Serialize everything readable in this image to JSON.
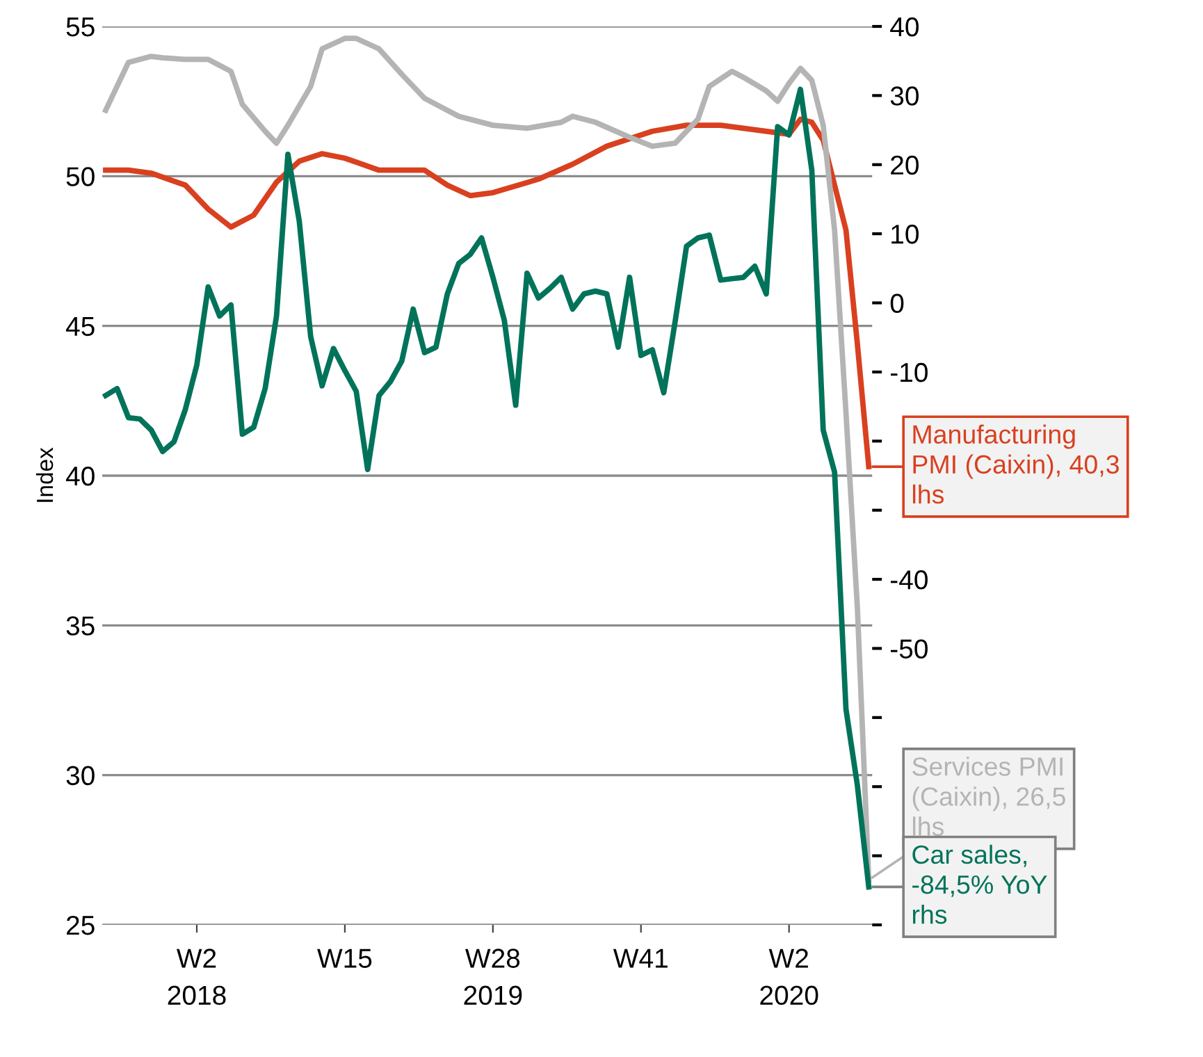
{
  "chart_data": {
    "type": "line",
    "ylabel": "Index",
    "categories": [
      null,
      null,
      null,
      null,
      null,
      null,
      null,
      null,
      "W2\n2018",
      null,
      null,
      null,
      null,
      null,
      null,
      null,
      null,
      null,
      null,
      null,
      null,
      "W15",
      null,
      null,
      null,
      null,
      null,
      null,
      null,
      null,
      null,
      null,
      null,
      null,
      "W28\n2019",
      null,
      null,
      null,
      null,
      null,
      null,
      null,
      null,
      null,
      null,
      null,
      null,
      "W41",
      null,
      null,
      null,
      null,
      null,
      null,
      null,
      null,
      null,
      null,
      null,
      null,
      "W2\n2020",
      null,
      null,
      null,
      null,
      null,
      null,
      null
    ],
    "ylim": [
      25,
      55
    ],
    "yticks": [
      25,
      30,
      35,
      40,
      45,
      50,
      55
    ],
    "y2lim": [
      -90,
      40
    ],
    "y2ticks": [
      40,
      30,
      20,
      10,
      0,
      -10,
      {
        "value": -20,
        "label": null
      },
      {
        "value": -30,
        "label": null
      },
      -40,
      -50,
      {
        "value": -60,
        "label": null
      },
      {
        "value": -70,
        "label": null
      },
      {
        "value": -80,
        "label": null
      },
      {
        "value": -90,
        "label": null
      }
    ],
    "grid": "y",
    "legend": "right",
    "marker": "none",
    "line_style": "solid",
    "series": [
      {
        "name": "Manufacturing\nPMI (Caixin), 40,3\nlhs",
        "color": "#d9401f",
        "values": [
          50.2,
          null,
          50.2,
          null,
          50.1,
          null,
          null,
          49.7,
          null,
          48.9,
          null,
          48.3,
          null,
          48.7,
          null,
          49.8,
          null,
          50.5,
          null,
          50.75,
          null,
          50.6,
          null,
          null,
          50.2,
          null,
          null,
          null,
          50.2,
          null,
          49.7,
          null,
          49.35,
          null,
          49.45,
          null,
          null,
          null,
          49.9,
          null,
          null,
          50.4,
          null,
          null,
          51.0,
          null,
          null,
          null,
          51.5,
          null,
          null,
          51.7,
          null,
          null,
          51.7,
          null,
          null,
          51.55,
          null,
          null,
          51.4,
          51.9,
          51.8,
          51.2,
          null,
          48.2,
          44.4,
          40.3
        ]
      },
      {
        "name": "Services PMI\n(Caixin), 26,5\nlhs",
        "color": "#b4b4b4",
        "values": [
          52.2,
          null,
          53.8,
          null,
          54.0,
          53.95,
          null,
          53.9,
          null,
          53.9,
          53.7,
          53.5,
          52.4,
          null,
          51.5,
          51.1,
          51.7,
          null,
          53.0,
          54.25,
          null,
          54.6,
          54.6,
          null,
          54.25,
          null,
          53.4,
          null,
          52.6,
          null,
          null,
          52.0,
          null,
          null,
          51.7,
          null,
          null,
          51.6,
          null,
          null,
          51.8,
          52.0,
          null,
          51.8,
          null,
          null,
          51.3,
          null,
          51.0,
          null,
          51.1,
          null,
          51.9,
          53.0,
          null,
          53.5,
          53.3,
          null,
          52.85,
          52.5,
          53.1,
          53.6,
          53.2,
          51.7,
          48.2,
          42.1,
          35.6,
          26.5
        ]
      },
      {
        "name": "Car sales,\n-84,5% YoY\nrhs",
        "color": "#00735a",
        "axis": "y2",
        "values": [
          -13.4,
          -12.4,
          -16.6,
          -16.8,
          -18.4,
          -21.5,
          -20.1,
          -15.4,
          -9.0,
          2.3,
          -1.9,
          -0.3,
          -19.0,
          -18.0,
          -12.4,
          -1.9,
          21.5,
          11.8,
          -4.9,
          -12.0,
          -6.6,
          -9.8,
          -12.8,
          -24.1,
          -13.4,
          -11.4,
          -8.4,
          -0.9,
          -7.2,
          -6.4,
          1.3,
          5.7,
          7.0,
          9.4,
          3.7,
          -2.5,
          -14.8,
          4.3,
          0.7,
          2.1,
          3.7,
          -0.9,
          1.3,
          1.7,
          1.3,
          -6.4,
          3.7,
          -7.6,
          -6.8,
          -13.0,
          -2.7,
          8.2,
          9.4,
          9.8,
          3.3,
          3.5,
          3.7,
          5.3,
          1.3,
          25.5,
          24.3,
          30.9,
          19.2,
          -18.4,
          -24.5,
          -58.8,
          -69.8,
          -84.5
        ]
      }
    ]
  }
}
